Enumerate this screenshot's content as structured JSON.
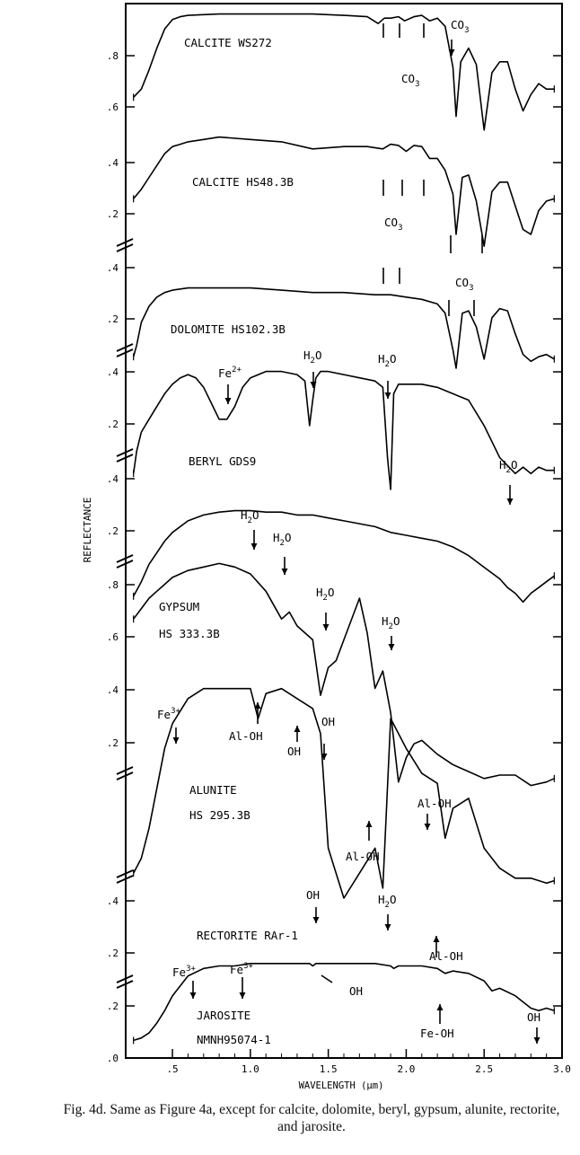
{
  "chart_data": {
    "type": "line",
    "xlabel": "WAVELENGTH (µm)",
    "ylabel": "REFLECTANCE",
    "xlim": [
      0.2,
      3.0
    ],
    "x_ticks": [
      ".5",
      "1.0",
      "1.5",
      "2.0",
      "2.5",
      "3.0"
    ],
    "grid": false,
    "legend": "none",
    "panels": [
      {
        "name": "CALCITE WS272",
        "y_ticks": [
          ".6",
          ".8"
        ]
      },
      {
        "name": "CALCITE HS48.3B",
        "y_ticks": [
          ".2",
          ".4"
        ]
      },
      {
        "name": "DOLOMITE HS102.3B",
        "y_ticks": [
          ".2",
          ".4"
        ]
      },
      {
        "name": "BERYL GDS9",
        "y_ticks": [
          ".2",
          ".4"
        ]
      },
      {
        "name": "GYPSUM HS333.3B",
        "y_ticks": [
          ".2",
          ".4"
        ]
      },
      {
        "name": "ALUNITE HS295.3B",
        "y_ticks": [
          ".2",
          ".4",
          ".6",
          ".8"
        ]
      },
      {
        "name": "RECTORITE RAr-1",
        "y_ticks": [
          ".2",
          ".4"
        ]
      },
      {
        "name": "JAROSITE NMNH95074-1",
        "y_ticks": [
          ".0",
          ".2"
        ]
      }
    ],
    "series": [
      {
        "name": "CALCITE WS272",
        "x": [
          0.25,
          0.3,
          0.35,
          0.4,
          0.45,
          0.5,
          0.55,
          0.6,
          0.8,
          1.0,
          1.2,
          1.4,
          1.6,
          1.75,
          1.82,
          1.86,
          1.9,
          1.95,
          1.99,
          2.05,
          2.1,
          2.15,
          2.2,
          2.25,
          2.3,
          2.32,
          2.35,
          2.4,
          2.45,
          2.5,
          2.55,
          2.6,
          2.65,
          2.7,
          2.75,
          2.8,
          2.85,
          2.9,
          2.95
        ],
        "y": [
          0.67,
          0.7,
          0.77,
          0.85,
          0.92,
          0.955,
          0.965,
          0.97,
          0.975,
          0.975,
          0.975,
          0.975,
          0.97,
          0.965,
          0.94,
          0.96,
          0.96,
          0.965,
          0.95,
          0.965,
          0.97,
          0.95,
          0.96,
          0.93,
          0.78,
          0.6,
          0.8,
          0.85,
          0.79,
          0.55,
          0.76,
          0.8,
          0.8,
          0.7,
          0.62,
          0.68,
          0.72,
          0.7,
          0.7
        ]
      },
      {
        "name": "CALCITE HS48.3B",
        "x": [
          0.25,
          0.3,
          0.35,
          0.4,
          0.45,
          0.5,
          0.55,
          0.6,
          0.7,
          0.8,
          1.0,
          1.2,
          1.4,
          1.6,
          1.75,
          1.85,
          1.9,
          1.95,
          2.0,
          2.05,
          2.1,
          2.15,
          2.2,
          2.25,
          2.3,
          2.32,
          2.36,
          2.4,
          2.45,
          2.5,
          2.55,
          2.6,
          2.65,
          2.7,
          2.75,
          2.8,
          2.85,
          2.9,
          2.95
        ],
        "y": [
          0.23,
          0.27,
          0.32,
          0.37,
          0.42,
          0.45,
          0.46,
          0.47,
          0.48,
          0.49,
          0.48,
          0.47,
          0.44,
          0.45,
          0.45,
          0.44,
          0.46,
          0.455,
          0.43,
          0.455,
          0.45,
          0.4,
          0.4,
          0.35,
          0.25,
          0.08,
          0.32,
          0.33,
          0.22,
          0.03,
          0.26,
          0.3,
          0.3,
          0.2,
          0.1,
          0.08,
          0.18,
          0.22,
          0.23
        ]
      },
      {
        "name": "DOLOMITE HS102.3B",
        "x": [
          0.25,
          0.27,
          0.3,
          0.35,
          0.4,
          0.45,
          0.5,
          0.6,
          0.8,
          1.0,
          1.2,
          1.4,
          1.6,
          1.8,
          1.9,
          2.0,
          2.1,
          2.2,
          2.25,
          2.3,
          2.32,
          2.36,
          2.4,
          2.45,
          2.5,
          2.55,
          2.6,
          2.65,
          2.7,
          2.75,
          2.8,
          2.85,
          2.9,
          2.95
        ],
        "y": [
          0.05,
          0.1,
          0.2,
          0.27,
          0.31,
          0.33,
          0.34,
          0.35,
          0.35,
          0.35,
          0.34,
          0.33,
          0.33,
          0.32,
          0.32,
          0.31,
          0.3,
          0.28,
          0.24,
          0.08,
          0.0,
          0.24,
          0.25,
          0.18,
          0.04,
          0.22,
          0.26,
          0.25,
          0.15,
          0.06,
          0.03,
          0.05,
          0.06,
          0.04
        ]
      },
      {
        "name": "BERYL GDS9",
        "x": [
          0.25,
          0.27,
          0.3,
          0.35,
          0.4,
          0.45,
          0.5,
          0.55,
          0.6,
          0.65,
          0.7,
          0.75,
          0.8,
          0.85,
          0.9,
          0.95,
          1.0,
          1.1,
          1.2,
          1.3,
          1.35,
          1.38,
          1.4,
          1.42,
          1.45,
          1.5,
          1.6,
          1.7,
          1.8,
          1.85,
          1.88,
          1.9,
          1.92,
          1.95,
          2.0,
          2.1,
          2.2,
          2.3,
          2.4,
          2.5,
          2.6,
          2.7,
          2.75,
          2.8,
          2.85,
          2.9,
          2.95
        ],
        "y": [
          0.05,
          0.12,
          0.18,
          0.22,
          0.26,
          0.3,
          0.33,
          0.35,
          0.36,
          0.35,
          0.32,
          0.27,
          0.22,
          0.22,
          0.26,
          0.32,
          0.35,
          0.37,
          0.37,
          0.36,
          0.34,
          0.2,
          0.28,
          0.35,
          0.37,
          0.37,
          0.36,
          0.35,
          0.34,
          0.32,
          0.1,
          0.0,
          0.3,
          0.33,
          0.33,
          0.33,
          0.32,
          0.3,
          0.28,
          0.2,
          0.1,
          0.05,
          0.07,
          0.05,
          0.07,
          0.06,
          0.06
        ]
      },
      {
        "name": "GYPSUM HS333.3B",
        "x": [
          0.25,
          0.3,
          0.35,
          0.4,
          0.45,
          0.5,
          0.6,
          0.7,
          0.8,
          0.9,
          1.0,
          1.1,
          1.2,
          1.3,
          1.4,
          1.5,
          1.6,
          1.7,
          1.8,
          1.9,
          2.0,
          2.1,
          2.2,
          2.3,
          2.4,
          2.5,
          2.6,
          2.65,
          2.7,
          2.75,
          2.8,
          2.85,
          2.9,
          2.95
        ],
        "y": [
          0.05,
          0.1,
          0.16,
          0.2,
          0.24,
          0.27,
          0.31,
          0.33,
          0.34,
          0.345,
          0.345,
          0.34,
          0.34,
          0.33,
          0.33,
          0.32,
          0.31,
          0.3,
          0.29,
          0.27,
          0.26,
          0.25,
          0.24,
          0.22,
          0.19,
          0.15,
          0.11,
          0.08,
          0.06,
          0.03,
          0.06,
          0.08,
          0.1,
          0.12
        ]
      },
      {
        "name": "ALUNITE HS295.3B",
        "x": [
          0.25,
          0.3,
          0.35,
          0.4,
          0.45,
          0.5,
          0.55,
          0.6,
          0.7,
          0.8,
          0.9,
          1.0,
          1.1,
          1.2,
          1.25,
          1.3,
          1.4,
          1.45,
          1.5,
          1.55,
          1.6,
          1.7,
          1.75,
          1.8,
          1.85,
          1.9,
          1.95,
          2.0,
          2.05,
          2.1,
          2.2,
          2.3,
          2.4,
          2.5,
          2.6,
          2.7,
          2.8,
          2.9,
          2.95
        ],
        "y": [
          0.72,
          0.75,
          0.78,
          0.8,
          0.82,
          0.84,
          0.85,
          0.86,
          0.87,
          0.88,
          0.87,
          0.85,
          0.8,
          0.72,
          0.74,
          0.7,
          0.66,
          0.5,
          0.58,
          0.6,
          0.66,
          0.78,
          0.68,
          0.52,
          0.57,
          0.45,
          0.25,
          0.32,
          0.36,
          0.37,
          0.33,
          0.3,
          0.28,
          0.26,
          0.27,
          0.27,
          0.24,
          0.25,
          0.26
        ]
      },
      {
        "name": "RECTORITE RAr-1",
        "x": [
          0.25,
          0.3,
          0.35,
          0.4,
          0.45,
          0.5,
          0.6,
          0.7,
          0.8,
          0.9,
          1.0,
          1.05,
          1.1,
          1.2,
          1.3,
          1.4,
          1.45,
          1.5,
          1.6,
          1.7,
          1.8,
          1.85,
          1.9,
          2.0,
          2.1,
          2.2,
          2.25,
          2.3,
          2.4,
          2.5,
          2.6,
          2.7,
          2.8,
          2.9,
          2.95
        ],
        "y": [
          0.05,
          0.08,
          0.14,
          0.22,
          0.3,
          0.35,
          0.4,
          0.42,
          0.42,
          0.42,
          0.42,
          0.36,
          0.41,
          0.42,
          0.4,
          0.38,
          0.33,
          0.1,
          0.0,
          0.05,
          0.1,
          0.02,
          0.36,
          0.3,
          0.25,
          0.23,
          0.12,
          0.18,
          0.2,
          0.1,
          0.06,
          0.04,
          0.04,
          0.03,
          0.035
        ]
      },
      {
        "name": "JAROSITE NMNH95074-1",
        "x": [
          0.25,
          0.3,
          0.35,
          0.4,
          0.45,
          0.5,
          0.55,
          0.6,
          0.7,
          0.8,
          0.9,
          1.0,
          1.1,
          1.2,
          1.3,
          1.38,
          1.4,
          1.42,
          1.5,
          1.6,
          1.7,
          1.8,
          1.9,
          1.92,
          1.95,
          2.0,
          2.1,
          2.2,
          2.25,
          2.3,
          2.4,
          2.5,
          2.55,
          2.6,
          2.7,
          2.8,
          2.85,
          2.9,
          2.95
        ],
        "y": [
          0.06,
          0.07,
          0.09,
          0.13,
          0.18,
          0.24,
          0.28,
          0.32,
          0.35,
          0.36,
          0.36,
          0.37,
          0.37,
          0.37,
          0.37,
          0.37,
          0.36,
          0.37,
          0.37,
          0.37,
          0.37,
          0.37,
          0.36,
          0.35,
          0.36,
          0.36,
          0.36,
          0.35,
          0.33,
          0.34,
          0.33,
          0.3,
          0.26,
          0.27,
          0.24,
          0.19,
          0.18,
          0.19,
          0.18
        ]
      }
    ],
    "panel_labels": [
      {
        "text": "CALCITE WS272"
      },
      {
        "text": "CALCITE HS48.3B"
      },
      {
        "text": "DOLOMITE HS102.3B"
      },
      {
        "text": "BERYL GDS9"
      },
      {
        "text": "GYPSUM"
      },
      {
        "text": "HS 333.3B"
      },
      {
        "text": "ALUNITE"
      },
      {
        "text": "HS 295.3B"
      },
      {
        "text": "RECTORITE RAr-1"
      },
      {
        "text": "JAROSITE"
      },
      {
        "text": "NMNH95074-1"
      }
    ],
    "annotations": [
      {
        "text": "CO",
        "sub": "3",
        "dir": "down"
      },
      {
        "text": "CO",
        "sub": "3",
        "dir": "none"
      },
      {
        "text": "CO",
        "sub": "3",
        "dir": "none"
      },
      {
        "text": "CO",
        "sub": "3",
        "dir": "none"
      },
      {
        "text": "H",
        "sub": "2",
        "tail": "O",
        "dir": "down"
      },
      {
        "text": "H",
        "sub": "2",
        "tail": "O",
        "dir": "down"
      },
      {
        "text": "Fe",
        "sup": "2+",
        "dir": "down"
      },
      {
        "text": "H",
        "sub": "2",
        "tail": "O",
        "dir": "down"
      },
      {
        "text": "H",
        "sub": "2",
        "tail": "O",
        "dir": "down"
      },
      {
        "text": "H",
        "sub": "2",
        "tail": "O",
        "dir": "down"
      },
      {
        "text": "H",
        "sub": "2",
        "tail": "O",
        "dir": "down"
      },
      {
        "text": "H",
        "sub": "2",
        "tail": "O",
        "dir": "down"
      },
      {
        "text": "Fe",
        "sup": "3+",
        "dir": "down"
      },
      {
        "text": "Al-OH",
        "dir": "up"
      },
      {
        "text": "OH",
        "dir": "up"
      },
      {
        "text": "OH",
        "dir": "down"
      },
      {
        "text": "Al-OH",
        "dir": "up"
      },
      {
        "text": "Al-OH",
        "dir": "down"
      },
      {
        "text": "OH",
        "dir": "down"
      },
      {
        "text": "H",
        "sub": "2",
        "tail": "O",
        "dir": "down"
      },
      {
        "text": "Al-OH",
        "dir": "up"
      },
      {
        "text": "Fe",
        "sup": "3+",
        "dir": "down"
      },
      {
        "text": "Fe",
        "sup": "3+",
        "dir": "down"
      },
      {
        "text": "OH",
        "dir": "left"
      },
      {
        "text": "Fe-OH",
        "dir": "up"
      },
      {
        "text": "OH",
        "dir": "down"
      }
    ]
  },
  "caption": {
    "label": "Fig. 4d.",
    "text": "Same as Figure 4a, except for calcite, dolomite, beryl, gypsum, alunite, rectorite, and jarosite."
  }
}
